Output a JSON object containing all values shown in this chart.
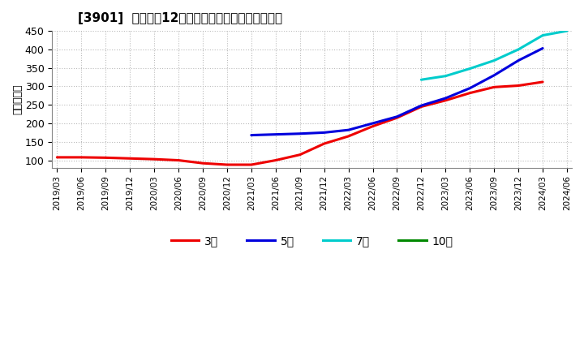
{
  "title": "[3901]  経常利益12か月移動合計の標準偏差の推移",
  "ylabel": "（百万円）",
  "ylim": [
    80,
    450
  ],
  "yticks": [
    100,
    150,
    200,
    250,
    300,
    350,
    400,
    450
  ],
  "background_color": "#ffffff",
  "plot_bg_color": "#ffffff",
  "grid_color": "#aaaaaa",
  "series": {
    "3year": {
      "label": "3年",
      "color": "#ee0000",
      "x": [
        "2019/03",
        "2019/06",
        "2019/09",
        "2019/12",
        "2020/03",
        "2020/06",
        "2020/09",
        "2020/12",
        "2021/03",
        "2021/06",
        "2021/09",
        "2021/12",
        "2022/03",
        "2022/06",
        "2022/09",
        "2022/12",
        "2023/03",
        "2023/06",
        "2023/09",
        "2023/12",
        "2024/03"
      ],
      "y": [
        108,
        108,
        107,
        105,
        103,
        100,
        92,
        88,
        88,
        100,
        115,
        145,
        165,
        192,
        215,
        245,
        262,
        282,
        298,
        302,
        312
      ]
    },
    "5year": {
      "label": "5年",
      "color": "#0000dd",
      "x": [
        "2021/03",
        "2021/06",
        "2021/09",
        "2021/12",
        "2022/03",
        "2022/06",
        "2022/09",
        "2022/12",
        "2023/03",
        "2023/06",
        "2023/09",
        "2023/12",
        "2024/03"
      ],
      "y": [
        168,
        170,
        172,
        175,
        182,
        200,
        218,
        248,
        268,
        295,
        330,
        370,
        403
      ]
    },
    "7year": {
      "label": "7年",
      "color": "#00cccc",
      "x": [
        "2022/12",
        "2023/03",
        "2023/06",
        "2023/09",
        "2023/12",
        "2024/03",
        "2024/06"
      ],
      "y": [
        318,
        328,
        348,
        370,
        400,
        438,
        450
      ]
    },
    "10year": {
      "label": "10年",
      "color": "#008800",
      "x": [],
      "y": []
    }
  },
  "xticks": [
    "2019/03",
    "2019/06",
    "2019/09",
    "2019/12",
    "2020/03",
    "2020/06",
    "2020/09",
    "2020/12",
    "2021/03",
    "2021/06",
    "2021/09",
    "2021/12",
    "2022/03",
    "2022/06",
    "2022/09",
    "2022/12",
    "2023/03",
    "2023/06",
    "2023/09",
    "2023/12",
    "2024/03",
    "2024/06"
  ]
}
